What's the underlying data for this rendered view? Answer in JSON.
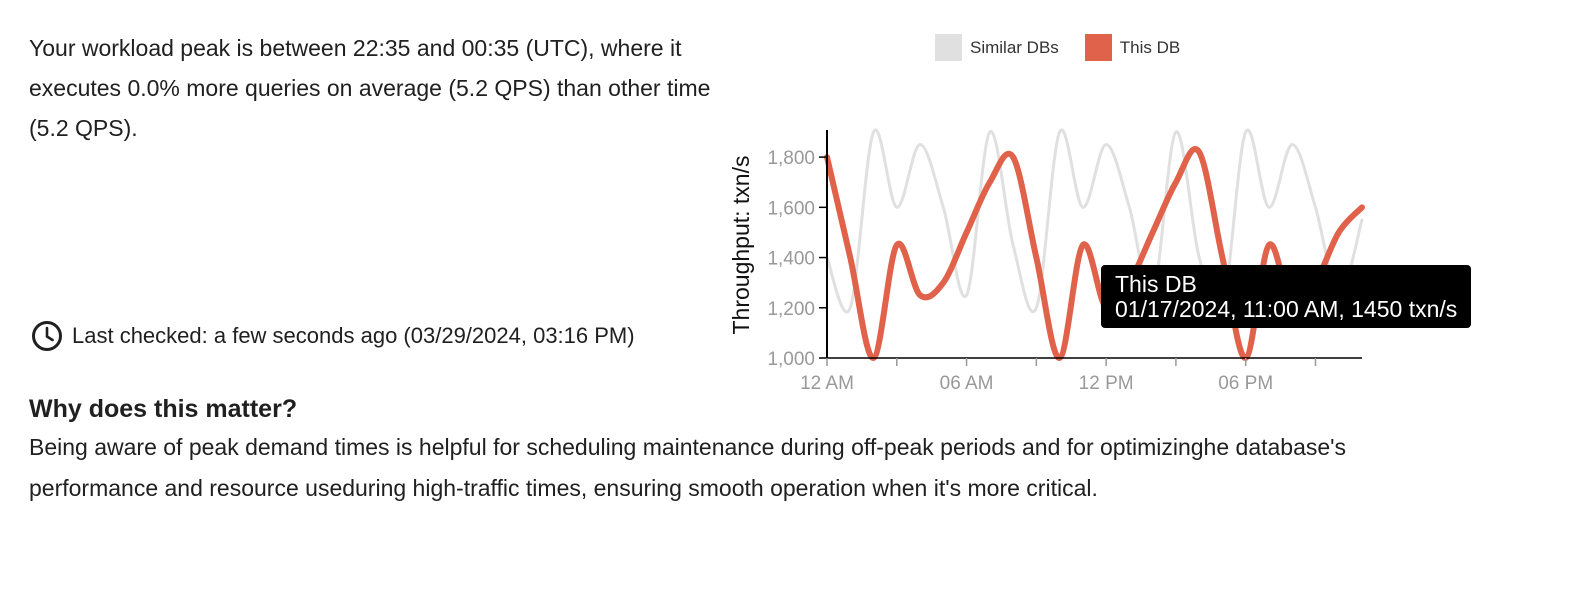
{
  "summary": {
    "text": "Your workload peak is between 22:35 and 00:35 (UTC), where it executes 0.0% more queries on average (5.2 QPS) than other time (5.2 QPS)."
  },
  "status": {
    "icon": "clock-icon",
    "last_checked": "Last checked: a few seconds ago (03/29/2024, 03:16 PM)"
  },
  "why": {
    "title": "Why does this matter?",
    "body": "Being aware of peak demand times is helpful for scheduling maintenance during off-peak periods and for optimizinghe database's performance and resource useduring high-traffic times, ensuring smooth operation when it's more critical."
  },
  "tooltip": {
    "series": "This DB",
    "detail": "01/17/2024, 11:00 AM, 1450 txn/s"
  },
  "chart_data": {
    "type": "line",
    "ylabel": "Throughput: txn/s",
    "ylim": [
      1000,
      1900
    ],
    "yticks": [
      1000,
      1200,
      1400,
      1600,
      1800
    ],
    "ytick_labels": [
      "1,000",
      "1,200",
      "1,400",
      "1,600",
      "1,800"
    ],
    "xlim": [
      0,
      23
    ],
    "xticks": [
      0,
      3,
      6,
      9,
      12,
      15,
      18,
      21
    ],
    "xtick_labels": [
      "12 AM",
      "",
      "06 AM",
      "",
      "12 PM",
      "",
      "06 PM",
      ""
    ],
    "legend_position": "top",
    "series": [
      {
        "name": "Similar DBs",
        "color": "#e0e0e0",
        "x": [
          0,
          1,
          2,
          3,
          4,
          5,
          6,
          7,
          8,
          9,
          10,
          11,
          12,
          13,
          14,
          15,
          16,
          17,
          18,
          19,
          20,
          21,
          22,
          23
        ],
        "y": [
          1400,
          1200,
          1900,
          1600,
          1850,
          1600,
          1250,
          1900,
          1450,
          1200,
          1900,
          1600,
          1850,
          1600,
          1250,
          1900,
          1400,
          1200,
          1900,
          1600,
          1850,
          1600,
          1250,
          1550
        ]
      },
      {
        "name": "This DB",
        "color": "#e0624a",
        "x": [
          0,
          1,
          2,
          3,
          4,
          5,
          6,
          7,
          8,
          9,
          10,
          11,
          12,
          13,
          14,
          15,
          16,
          17,
          18,
          19,
          20,
          21,
          22,
          23
        ],
        "y": [
          1800,
          1400,
          1000,
          1450,
          1250,
          1300,
          1500,
          1700,
          1800,
          1400,
          1000,
          1450,
          1200,
          1300,
          1500,
          1700,
          1820,
          1400,
          1000,
          1450,
          1200,
          1300,
          1500,
          1600
        ]
      }
    ],
    "highlight": {
      "series": "This DB",
      "x": "01/17/2024, 11:00 AM",
      "y": 1450
    }
  }
}
